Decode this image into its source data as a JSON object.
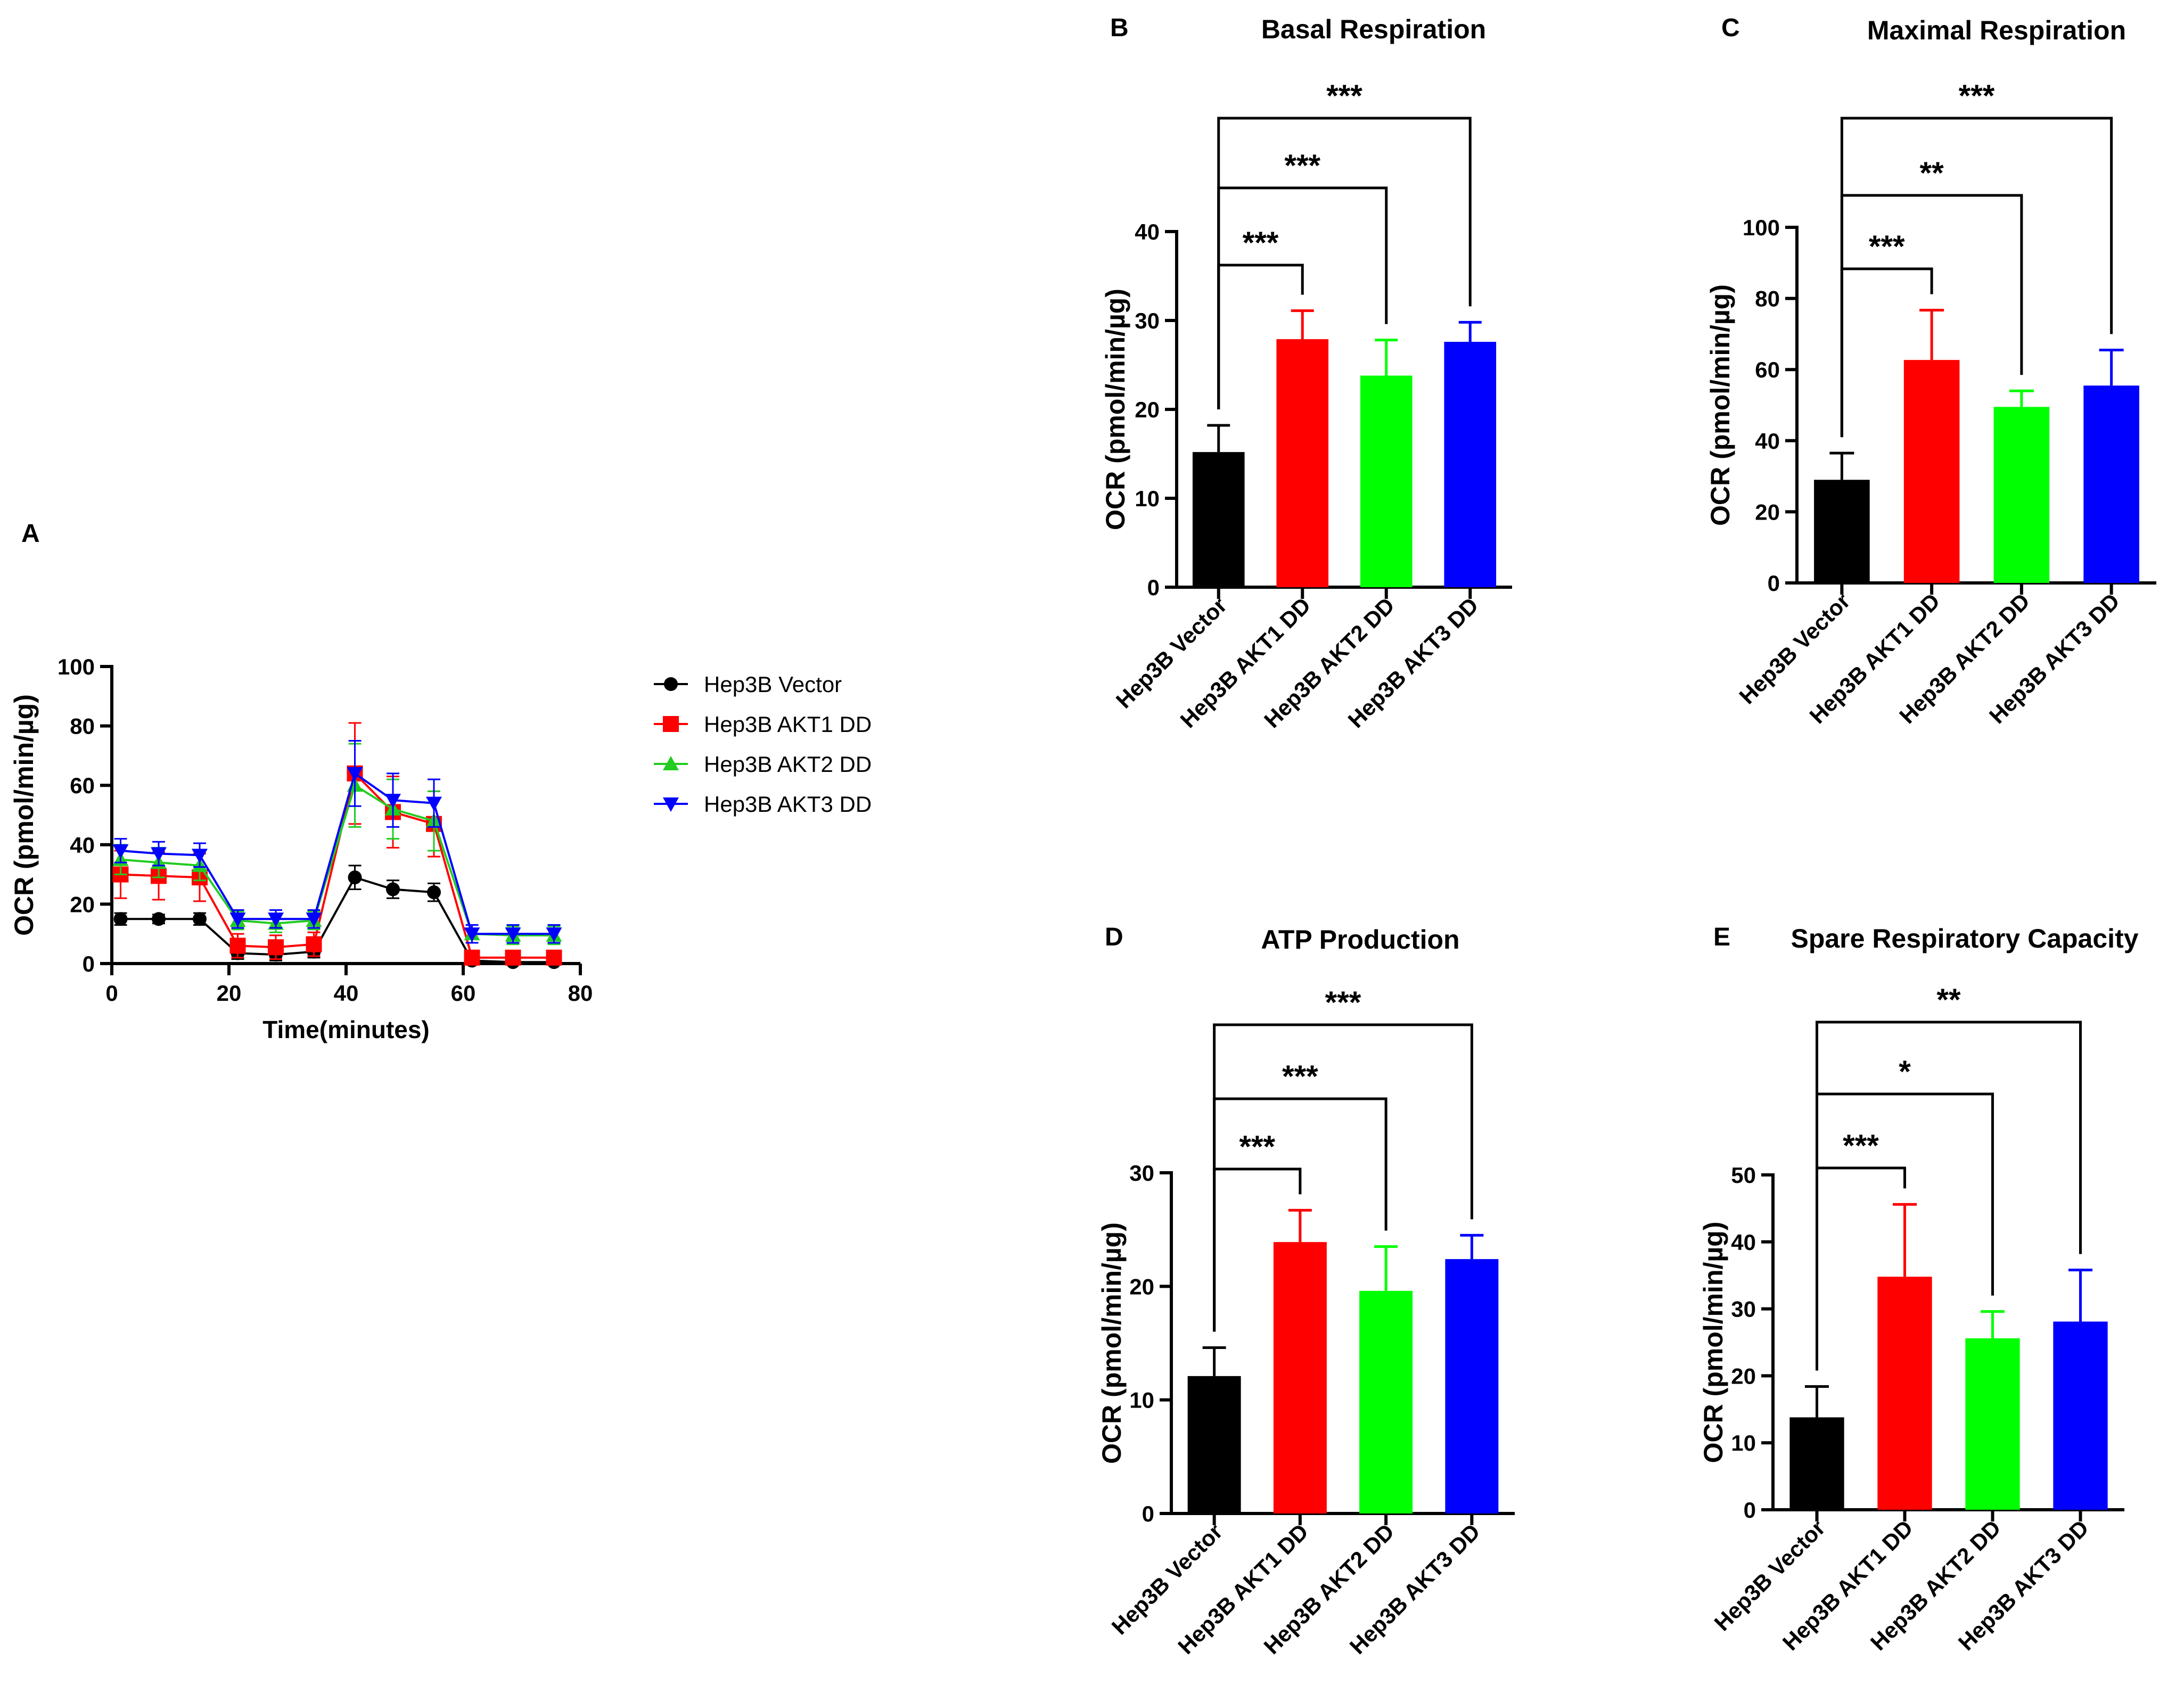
{
  "chart_data": [
    {
      "type": "line",
      "panel": "A",
      "xlabel": "Time(minutes)",
      "ylabel": "OCR (pmol/min/µg)",
      "xlim": [
        0,
        80
      ],
      "ylim": [
        0,
        100
      ],
      "xticks": [
        0,
        20,
        40,
        60,
        80
      ],
      "yticks": [
        0,
        20,
        40,
        60,
        80,
        100
      ],
      "x": [
        1.5,
        8,
        15,
        21.5,
        28,
        34.5,
        41.5,
        48,
        55,
        61.5,
        68.5,
        75.5
      ],
      "series": [
        {
          "name": "Hep3B Vector",
          "color": "#000000",
          "marker": "circle",
          "values": [
            15,
            15,
            15,
            3.5,
            3,
            4,
            29,
            25,
            24,
            1,
            0.5,
            0.5
          ],
          "errors": [
            2,
            1.5,
            2,
            2,
            2,
            2,
            4,
            3,
            3,
            1,
            1,
            1
          ]
        },
        {
          "name": "Hep3B AKT1 DD",
          "color": "#ff0000",
          "marker": "square",
          "values": [
            30,
            29.5,
            29,
            6,
            5.5,
            6.5,
            64,
            51,
            47,
            2,
            2,
            2
          ],
          "errors": [
            8,
            8,
            8,
            4,
            4,
            4,
            17,
            12,
            11,
            2,
            2,
            2
          ]
        },
        {
          "name": "Hep3B AKT2 DD",
          "color": "#22cc22",
          "marker": "triangle",
          "values": [
            35,
            34,
            33,
            14.5,
            13.5,
            14.5,
            60,
            52,
            48,
            10,
            9.5,
            9.5
          ],
          "errors": [
            5,
            5,
            5,
            3,
            3,
            3,
            14,
            10,
            10,
            3,
            3,
            3
          ]
        },
        {
          "name": "Hep3B AKT3 DD",
          "color": "#0000ff",
          "marker": "triangle-down",
          "values": [
            38,
            37,
            36.5,
            15,
            15,
            15,
            64,
            55,
            54,
            10,
            10,
            10
          ],
          "errors": [
            4,
            4,
            4,
            3,
            3,
            3,
            11,
            9,
            8,
            3,
            3,
            3
          ]
        }
      ]
    },
    {
      "type": "bar",
      "panel": "B",
      "title": "Basal Respiration",
      "ylabel": "OCR (pmol/min/µg)",
      "ylim": [
        0,
        40
      ],
      "yticks": [
        0,
        10,
        20,
        30,
        40
      ],
      "categories": [
        "Hep3B Vector",
        "Hep3B AKT1 DD",
        "Hep3B AKT2 DD",
        "Hep3B AKT3 DD"
      ],
      "values": [
        15.2,
        27.9,
        23.8,
        27.6
      ],
      "errors": [
        3.0,
        3.2,
        4.0,
        2.2
      ],
      "colors": [
        "#000000",
        "#ff0000",
        "#00ff00",
        "#0000ff"
      ],
      "significance": [
        {
          "from": 0,
          "to": 1,
          "label": "***"
        },
        {
          "from": 0,
          "to": 2,
          "label": "***"
        },
        {
          "from": 0,
          "to": 3,
          "label": "***"
        }
      ]
    },
    {
      "type": "bar",
      "panel": "C",
      "title": "Maximal Respiration",
      "ylabel": "OCR (pmol/min/µg)",
      "ylim": [
        0,
        100
      ],
      "yticks": [
        0,
        20,
        40,
        60,
        80,
        100
      ],
      "categories": [
        "Hep3B Vector",
        "Hep3B AKT1 DD",
        "Hep3B AKT2 DD",
        "Hep3B AKT3 DD"
      ],
      "values": [
        29,
        62.7,
        49.5,
        55.5
      ],
      "errors": [
        7.5,
        14,
        4.5,
        10
      ],
      "colors": [
        "#000000",
        "#ff0000",
        "#00ff00",
        "#0000ff"
      ],
      "significance": [
        {
          "from": 0,
          "to": 1,
          "label": "***"
        },
        {
          "from": 0,
          "to": 2,
          "label": "**"
        },
        {
          "from": 0,
          "to": 3,
          "label": "***"
        }
      ]
    },
    {
      "type": "bar",
      "panel": "D",
      "title": "ATP Production",
      "ylabel": "OCR (pmol/min/µg)",
      "ylim": [
        0,
        30
      ],
      "yticks": [
        0,
        10,
        20,
        30
      ],
      "categories": [
        "Hep3B Vector",
        "Hep3B AKT1 DD",
        "Hep3B AKT2 DD",
        "Hep3B AKT3 DD"
      ],
      "values": [
        12.1,
        23.9,
        19.6,
        22.4
      ],
      "errors": [
        2.5,
        2.8,
        3.9,
        2.1
      ],
      "colors": [
        "#000000",
        "#ff0000",
        "#00ff00",
        "#0000ff"
      ],
      "significance": [
        {
          "from": 0,
          "to": 1,
          "label": "***"
        },
        {
          "from": 0,
          "to": 2,
          "label": "***"
        },
        {
          "from": 0,
          "to": 3,
          "label": "***"
        }
      ]
    },
    {
      "type": "bar",
      "panel": "E",
      "title": "Spare Respiratory Capacity",
      "ylabel": "OCR (pmol/min/µg)",
      "ylim": [
        0,
        50
      ],
      "yticks": [
        0,
        10,
        20,
        30,
        40,
        50
      ],
      "categories": [
        "Hep3B Vector",
        "Hep3B AKT1 DD",
        "Hep3B AKT2 DD",
        "Hep3B AKT3 DD"
      ],
      "values": [
        13.8,
        34.8,
        25.6,
        28.1
      ],
      "errors": [
        4.6,
        10.8,
        4.0,
        7.7
      ],
      "colors": [
        "#000000",
        "#ff0000",
        "#00ff00",
        "#0000ff"
      ],
      "significance": [
        {
          "from": 0,
          "to": 1,
          "label": "***"
        },
        {
          "from": 0,
          "to": 2,
          "label": "*"
        },
        {
          "from": 0,
          "to": 3,
          "label": "**"
        }
      ]
    }
  ]
}
